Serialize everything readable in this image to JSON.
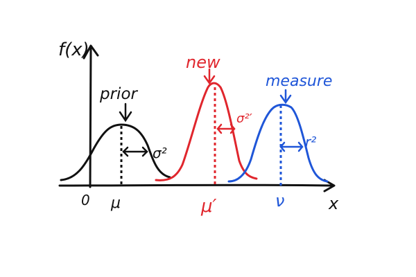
{
  "diagram": {
    "y_axis_label": "f(x)",
    "x_axis_label": "x",
    "origin_label": "0",
    "colors": {
      "prior": "#111111",
      "new": "#e0262d",
      "measure": "#1f56d8"
    },
    "curves": [
      {
        "id": "prior",
        "label": "prior",
        "mean_label": "μ",
        "variance_label": "σ²",
        "color": "#111111"
      },
      {
        "id": "new",
        "label": "new",
        "mean_label": "μ′",
        "variance_label": "σ²′",
        "color": "#e0262d"
      },
      {
        "id": "measure",
        "label": "measure",
        "mean_label": "ν",
        "variance_label": "r²",
        "color": "#1f56d8"
      }
    ]
  }
}
